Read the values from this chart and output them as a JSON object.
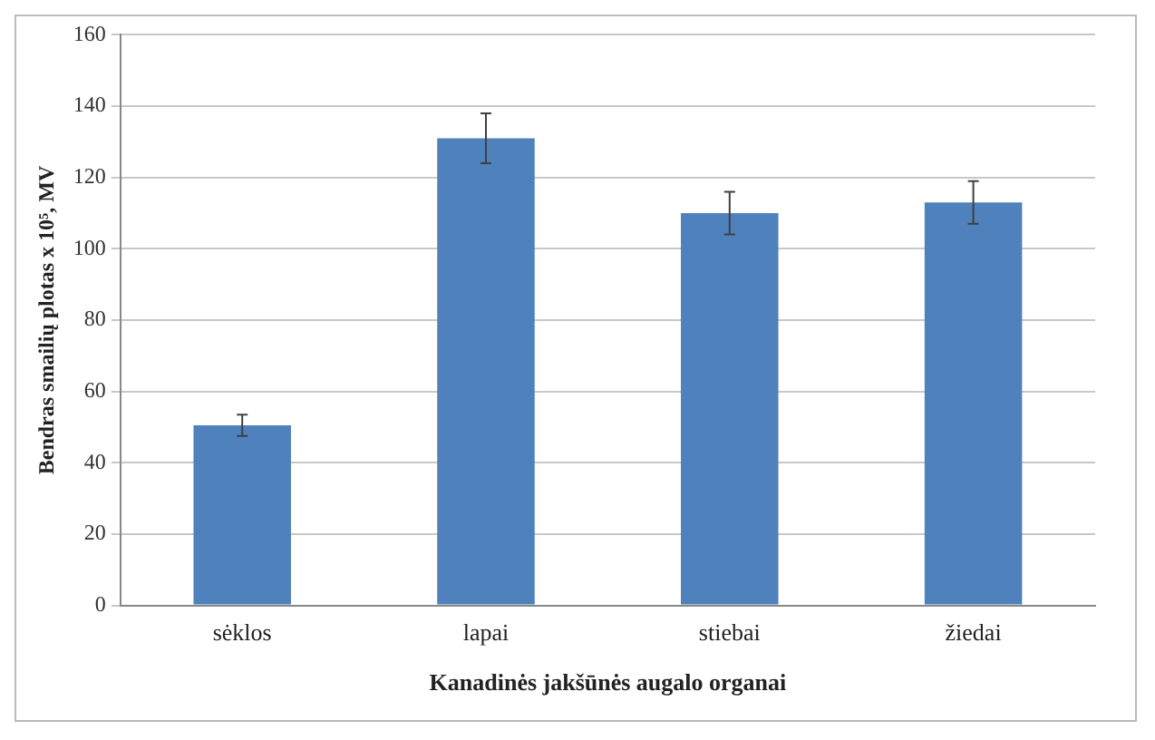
{
  "chart_data": {
    "type": "bar",
    "xlabel": "Kanadinės jakšūnės augalo organai",
    "ylabel": "Bendras smailių plotas x 10⁵, MV",
    "categories": [
      "sėklos",
      "lapai",
      "stiebai",
      "žiedai"
    ],
    "values": [
      50.5,
      131,
      110,
      113
    ],
    "errors": [
      3,
      7,
      6,
      6
    ],
    "color": "#4f81bd",
    "ylim": [
      0,
      160
    ],
    "yticks": [
      0,
      20,
      40,
      60,
      80,
      100,
      120,
      140,
      160
    ],
    "grid": "y"
  }
}
